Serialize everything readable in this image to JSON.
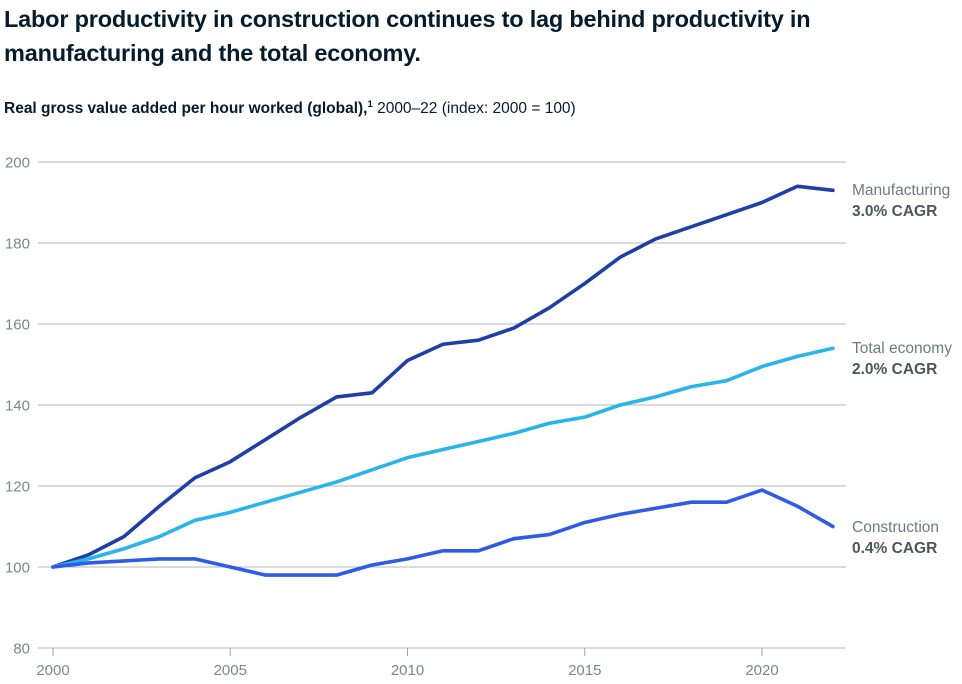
{
  "title": "Labor productivity in construction continues to lag behind productivity in manufacturing and the total economy.",
  "subtitle": {
    "bold": "Real gross value added per hour worked (global),",
    "superscript": "1",
    "rest": " 2000–22 (index: 2000 = 100)"
  },
  "chart_data": {
    "type": "line",
    "title": "Labor productivity in construction continues to lag behind productivity in manufacturing and the total economy.",
    "subtitle": "Real gross value added per hour worked (global), 2000–22 (index: 2000 = 100)",
    "x": [
      2000,
      2001,
      2002,
      2003,
      2004,
      2005,
      2006,
      2007,
      2008,
      2009,
      2010,
      2011,
      2012,
      2013,
      2014,
      2015,
      2016,
      2017,
      2018,
      2019,
      2020,
      2021,
      2022
    ],
    "series": [
      {
        "name": "Manufacturing",
        "cagr_label": "3.0% CAGR",
        "color": "#1f3ea6",
        "values": [
          100,
          103,
          107.5,
          115,
          122,
          126,
          131.5,
          137,
          142,
          143,
          151,
          155,
          156,
          159,
          164,
          170,
          176.5,
          181,
          184,
          187,
          190,
          194,
          193
        ]
      },
      {
        "name": "Total economy",
        "cagr_label": "2.0% CAGR",
        "color": "#29b5e8",
        "values": [
          100,
          102,
          104.5,
          107.5,
          111.5,
          113.5,
          116,
          118.5,
          121,
          124,
          127,
          129,
          131,
          133,
          135.5,
          137,
          140,
          142,
          144.5,
          146,
          149.5,
          152,
          154
        ]
      },
      {
        "name": "Construction",
        "cagr_label": "0.4% CAGR",
        "color": "#2f5ce6",
        "values": [
          100,
          101,
          101.5,
          102,
          102,
          100,
          98,
          98,
          98,
          100.5,
          102,
          104,
          104,
          107,
          108,
          111,
          113,
          114.5,
          116,
          116,
          119,
          115,
          110
        ]
      }
    ],
    "xticks": [
      2000,
      2005,
      2010,
      2015,
      2020
    ],
    "yticks": [
      80,
      100,
      120,
      140,
      160,
      180,
      200
    ],
    "ylim": [
      80,
      200
    ],
    "xlim": [
      2000,
      2022
    ],
    "xlabel": "",
    "ylabel": "",
    "grid": "horizontal",
    "legend_position": "right-of-line-ends"
  }
}
